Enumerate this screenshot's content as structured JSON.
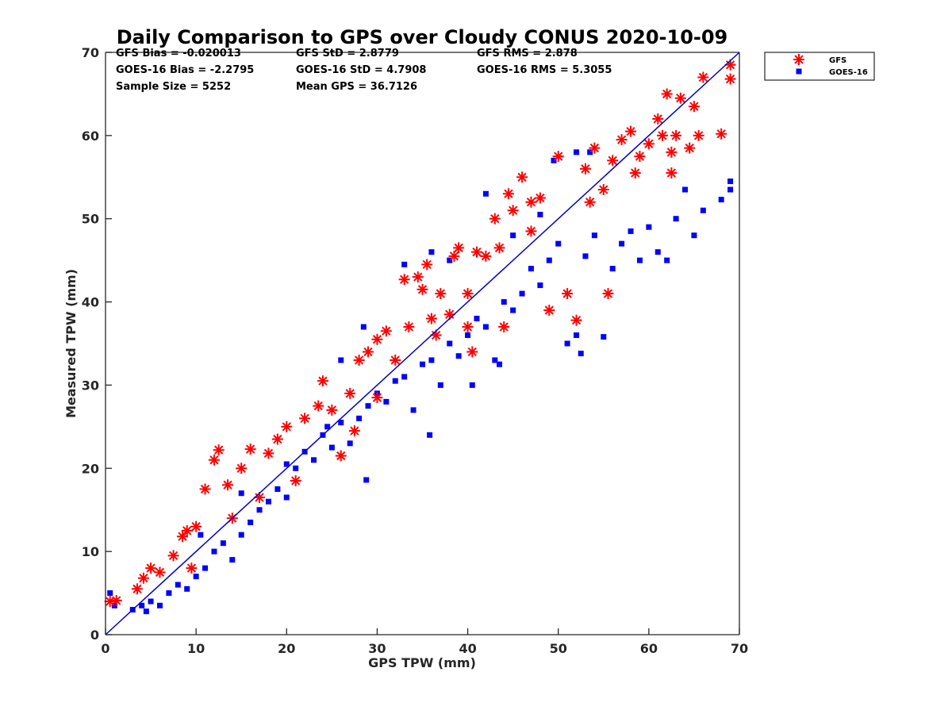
{
  "chart_data": {
    "type": "scatter",
    "title": "Daily Comparison to GPS over Cloudy CONUS 2020-10-09",
    "xlabel": "GPS TPW (mm)",
    "ylabel": "Measured TPW (mm)",
    "xlim": [
      0,
      70
    ],
    "ylim": [
      0,
      70
    ],
    "xticks": [
      "0",
      "10",
      "20",
      "30",
      "40",
      "50",
      "60",
      "70"
    ],
    "yticks": [
      "0",
      "10",
      "20",
      "30",
      "40",
      "50",
      "60",
      "70"
    ],
    "grid": false,
    "legend_position": "outside top-right",
    "reference_line": {
      "name": "1:1 line",
      "x": [
        0,
        70
      ],
      "y": [
        0,
        70
      ],
      "color": "#0000cc"
    },
    "stats": [
      "GFS Bias = -0.020013",
      "GFS StD = 2.8779",
      "GFS RMS = 2.878",
      "GOES-16 Bias = -2.2795",
      "GOES-16 StD = 4.7908",
      "GOES-16 RMS = 5.3055",
      "Sample Size = 5252",
      "Mean GPS = 36.7126"
    ],
    "series": [
      {
        "name": "GFS",
        "marker": "asterisk",
        "color": "#ff0000",
        "points": [
          [
            0.5,
            4.0
          ],
          [
            1.2,
            4.1
          ],
          [
            3.5,
            5.5
          ],
          [
            4.2,
            6.8
          ],
          [
            5.0,
            8.0
          ],
          [
            6.0,
            7.5
          ],
          [
            7.5,
            9.5
          ],
          [
            8.5,
            11.8
          ],
          [
            9.0,
            12.5
          ],
          [
            10.0,
            13.0
          ],
          [
            11.0,
            17.5
          ],
          [
            12.0,
            21.0
          ],
          [
            12.5,
            22.2
          ],
          [
            13.5,
            18.0
          ],
          [
            15.0,
            20.0
          ],
          [
            16.0,
            22.3
          ],
          [
            18.0,
            21.8
          ],
          [
            19.0,
            23.5
          ],
          [
            20.0,
            25.0
          ],
          [
            21.0,
            18.5
          ],
          [
            22.0,
            26.0
          ],
          [
            23.5,
            27.5
          ],
          [
            24.0,
            30.5
          ],
          [
            26.0,
            21.5
          ],
          [
            27.0,
            29.0
          ],
          [
            27.5,
            24.5
          ],
          [
            28.0,
            33.0
          ],
          [
            29.0,
            34.0
          ],
          [
            30.0,
            35.5
          ],
          [
            31.0,
            36.5
          ],
          [
            32.0,
            33.0
          ],
          [
            33.0,
            42.7
          ],
          [
            33.5,
            37.0
          ],
          [
            34.5,
            43.0
          ],
          [
            35.0,
            41.5
          ],
          [
            35.5,
            44.5
          ],
          [
            36.0,
            38.0
          ],
          [
            37.0,
            41.0
          ],
          [
            38.0,
            38.5
          ],
          [
            38.5,
            45.5
          ],
          [
            39.0,
            46.5
          ],
          [
            40.0,
            37.0
          ],
          [
            40.5,
            34.0
          ],
          [
            41.0,
            46.0
          ],
          [
            42.0,
            45.5
          ],
          [
            43.0,
            50.0
          ],
          [
            44.0,
            37.0
          ],
          [
            44.5,
            53.0
          ],
          [
            45.0,
            51.0
          ],
          [
            46.0,
            55.0
          ],
          [
            47.0,
            52.0
          ],
          [
            48.0,
            52.5
          ],
          [
            49.0,
            39.0
          ],
          [
            50.0,
            57.5
          ],
          [
            51.0,
            41.0
          ],
          [
            52.0,
            37.8
          ],
          [
            53.0,
            56.0
          ],
          [
            54.0,
            58.5
          ],
          [
            55.0,
            53.5
          ],
          [
            55.5,
            41.0
          ],
          [
            56.0,
            57.0
          ],
          [
            57.0,
            59.5
          ],
          [
            58.0,
            60.5
          ],
          [
            59.0,
            57.5
          ],
          [
            60.0,
            59.0
          ],
          [
            61.0,
            62.0
          ],
          [
            62.0,
            65.0
          ],
          [
            62.5,
            58.0
          ],
          [
            63.0,
            60.0
          ],
          [
            63.5,
            64.5
          ],
          [
            64.5,
            58.5
          ],
          [
            65.0,
            63.5
          ],
          [
            65.5,
            60.0
          ],
          [
            66.0,
            67.0
          ],
          [
            68.0,
            60.2
          ],
          [
            69.0,
            68.5
          ],
          [
            69.0,
            66.8
          ],
          [
            47.0,
            48.5
          ],
          [
            43.5,
            46.5
          ],
          [
            36.5,
            36.0
          ],
          [
            40.0,
            41.0
          ],
          [
            9.5,
            8.0
          ],
          [
            14.0,
            14.0
          ],
          [
            17.0,
            16.5
          ],
          [
            25.0,
            27.0
          ],
          [
            30.0,
            28.5
          ],
          [
            53.5,
            52.0
          ],
          [
            58.5,
            55.5
          ],
          [
            61.5,
            60.0
          ],
          [
            62.5,
            55.5
          ]
        ]
      },
      {
        "name": "GOES-16",
        "marker": "square",
        "color": "#0000ff",
        "points": [
          [
            0.5,
            5.0
          ],
          [
            1.0,
            3.5
          ],
          [
            3.0,
            3.0
          ],
          [
            4.0,
            3.5
          ],
          [
            4.5,
            2.8
          ],
          [
            5.0,
            4.0
          ],
          [
            6.0,
            3.5
          ],
          [
            7.0,
            5.0
          ],
          [
            8.0,
            6.0
          ],
          [
            9.0,
            5.5
          ],
          [
            10.0,
            7.0
          ],
          [
            11.0,
            8.0
          ],
          [
            12.0,
            10.0
          ],
          [
            13.0,
            11.0
          ],
          [
            14.0,
            9.0
          ],
          [
            15.0,
            12.0
          ],
          [
            16.0,
            13.5
          ],
          [
            17.0,
            15.0
          ],
          [
            18.0,
            16.0
          ],
          [
            19.0,
            17.5
          ],
          [
            20.0,
            16.5
          ],
          [
            21.0,
            20.0
          ],
          [
            22.0,
            22.0
          ],
          [
            23.0,
            21.0
          ],
          [
            24.0,
            24.0
          ],
          [
            25.0,
            22.5
          ],
          [
            26.0,
            25.5
          ],
          [
            27.0,
            23.0
          ],
          [
            28.0,
            26.0
          ],
          [
            28.8,
            18.6
          ],
          [
            29.0,
            27.5
          ],
          [
            30.0,
            29.0
          ],
          [
            31.0,
            28.0
          ],
          [
            32.0,
            30.5
          ],
          [
            33.0,
            31.0
          ],
          [
            34.0,
            27.0
          ],
          [
            35.0,
            32.5
          ],
          [
            35.8,
            24.0
          ],
          [
            36.0,
            33.0
          ],
          [
            37.0,
            30.0
          ],
          [
            38.0,
            35.0
          ],
          [
            39.0,
            33.5
          ],
          [
            40.0,
            36.0
          ],
          [
            40.5,
            30.0
          ],
          [
            41.0,
            38.0
          ],
          [
            42.0,
            37.0
          ],
          [
            43.0,
            33.0
          ],
          [
            43.5,
            32.5
          ],
          [
            44.0,
            40.0
          ],
          [
            45.0,
            39.0
          ],
          [
            46.0,
            41.0
          ],
          [
            47.0,
            44.0
          ],
          [
            48.0,
            42.0
          ],
          [
            49.0,
            45.0
          ],
          [
            50.0,
            47.0
          ],
          [
            51.0,
            35.0
          ],
          [
            52.0,
            36.0
          ],
          [
            52.5,
            33.8
          ],
          [
            53.0,
            45.5
          ],
          [
            54.0,
            48.0
          ],
          [
            55.0,
            35.8
          ],
          [
            56.0,
            44.0
          ],
          [
            57.0,
            47.0
          ],
          [
            58.0,
            48.5
          ],
          [
            59.0,
            45.0
          ],
          [
            60.0,
            49.0
          ],
          [
            61.0,
            46.0
          ],
          [
            62.0,
            45.0
          ],
          [
            63.0,
            50.0
          ],
          [
            64.0,
            53.5
          ],
          [
            65.0,
            48.0
          ],
          [
            66.0,
            51.0
          ],
          [
            68.0,
            52.3
          ],
          [
            69.0,
            53.5
          ],
          [
            69.0,
            54.5
          ],
          [
            26.0,
            33.0
          ],
          [
            28.5,
            37.0
          ],
          [
            33.0,
            44.5
          ],
          [
            36.0,
            46.0
          ],
          [
            38.0,
            45.0
          ],
          [
            42.0,
            53.0
          ],
          [
            49.5,
            57.0
          ],
          [
            52.0,
            58.0
          ],
          [
            53.5,
            58.0
          ],
          [
            45.0,
            48.0
          ],
          [
            48.0,
            50.5
          ],
          [
            10.5,
            12.0
          ],
          [
            15.0,
            17.0
          ],
          [
            20.0,
            20.5
          ],
          [
            24.5,
            25.0
          ]
        ]
      }
    ]
  }
}
